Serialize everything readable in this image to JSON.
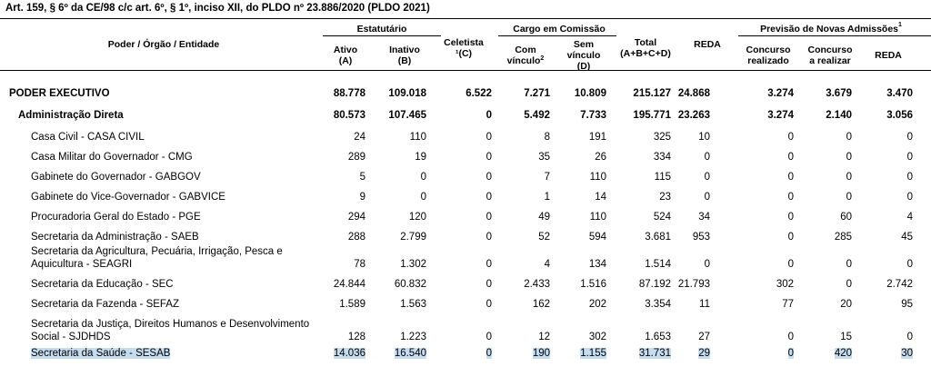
{
  "title": "Art. 159, § 6º da CE/98 c/c art. 6º, § 1º, inciso XII, do PLDO nº 23.886/2020 (PLDO 2021)",
  "header": {
    "entity": "Poder / Órgão / Entidade",
    "estatutario": "Estatutário",
    "ativo": "Ativo",
    "ativo_code": "(A)",
    "inativo": "Inativo",
    "inativo_code": "(B)",
    "celetista": "Celetista",
    "celetista_code": "(C)",
    "celetista_mark": "¹",
    "cargo": "Cargo em Comissão",
    "com": "Com",
    "vinculo": "vínculo",
    "com_sup": "2",
    "sem": "Sem",
    "sem_vinculo": "vínculo",
    "sem_code": "(D)",
    "total": "Total",
    "total_code": "(A+B+C+D)",
    "reda": "REDA",
    "previsao": "Previsão de Novas Admissões",
    "previsao_sup": "1",
    "concurso": "Concurso",
    "realizado": "realizado",
    "concurso2": "Concurso",
    "a_realizar": "a realizar",
    "reda2": "REDA"
  },
  "rows": [
    {
      "name": [
        "PODER EXECUTIVO"
      ],
      "values": [
        "88.778",
        "109.018",
        "6.522",
        "7.271",
        "10.809",
        "215.127",
        "24.868",
        "3.274",
        "3.679",
        "3.470"
      ]
    },
    {
      "name": [
        "Administração Direta"
      ],
      "values": [
        "80.573",
        "107.465",
        "0",
        "5.492",
        "7.733",
        "195.771",
        "23.263",
        "3.274",
        "2.140",
        "3.056"
      ]
    },
    {
      "name": [
        "Casa Civil - CASA CIVIL"
      ],
      "values": [
        "24",
        "110",
        "0",
        "8",
        "191",
        "325",
        "10",
        "0",
        "0",
        "0"
      ]
    },
    {
      "name": [
        "Casa Militar do Governador - CMG"
      ],
      "values": [
        "289",
        "19",
        "0",
        "35",
        "26",
        "334",
        "0",
        "0",
        "0",
        "0"
      ]
    },
    {
      "name": [
        "Gabinete do Governador - GABGOV"
      ],
      "values": [
        "5",
        "0",
        "0",
        "7",
        "110",
        "115",
        "0",
        "0",
        "0",
        "0"
      ]
    },
    {
      "name": [
        "Gabinete do Vice-Governador - GABVICE"
      ],
      "values": [
        "9",
        "0",
        "0",
        "1",
        "14",
        "23",
        "0",
        "0",
        "0",
        "0"
      ]
    },
    {
      "name": [
        "Procuradoria Geral do Estado - PGE"
      ],
      "values": [
        "294",
        "120",
        "0",
        "49",
        "110",
        "524",
        "34",
        "0",
        "60",
        "4"
      ]
    },
    {
      "name": [
        "Secretaria da Administração - SAEB"
      ],
      "values": [
        "288",
        "2.799",
        "0",
        "52",
        "594",
        "3.681",
        "953",
        "0",
        "285",
        "45"
      ]
    },
    {
      "name": [
        "Secretaria da Agricultura, Pecuária, Irrigação, Pesca e",
        "Aquicultura - SEAGRI"
      ],
      "values": [
        "78",
        "1.302",
        "0",
        "4",
        "134",
        "1.514",
        "0",
        "0",
        "0",
        "0"
      ]
    },
    {
      "name": [
        "Secretaria da Educação - SEC"
      ],
      "values": [
        "24.844",
        "60.832",
        "0",
        "2.433",
        "1.516",
        "87.192",
        "21.793",
        "302",
        "0",
        "2.742"
      ]
    },
    {
      "name": [
        "Secretaria da Fazenda - SEFAZ"
      ],
      "values": [
        "1.589",
        "1.563",
        "0",
        "162",
        "202",
        "3.354",
        "11",
        "77",
        "20",
        "95"
      ]
    },
    {
      "name": [
        "Secretaria da Justiça, Direitos Humanos e Desenvolvimento",
        "Social - SJDHDS"
      ],
      "values": [
        "128",
        "1.223",
        "0",
        "12",
        "302",
        "1.653",
        "27",
        "0",
        "15",
        "0"
      ]
    },
    {
      "name": [
        "Secretaria da Saúde - SESAB"
      ],
      "values": [
        "14.036",
        "16.540",
        "0",
        "190",
        "1.155",
        "31.731",
        "29",
        "0",
        "420",
        "30"
      ]
    }
  ]
}
